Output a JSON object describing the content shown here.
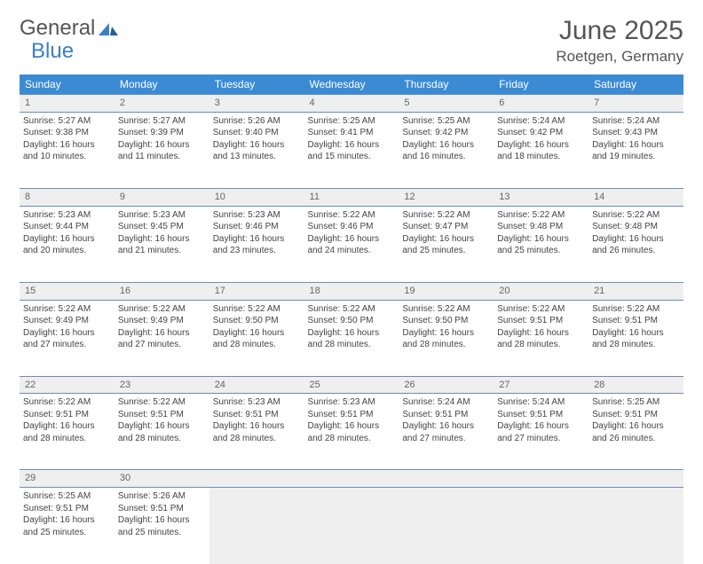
{
  "logo": {
    "part1": "General",
    "part2": "Blue"
  },
  "title": "June 2025",
  "location": "Roetgen, Germany",
  "colors": {
    "header_bg": "#3b8bd4",
    "row_divider": "#6a8fb5",
    "daynum_bg": "#efefef",
    "page_bg": "#ffffff",
    "text": "#444444",
    "logo_blue": "#3b7fc4"
  },
  "weekdays": [
    "Sunday",
    "Monday",
    "Tuesday",
    "Wednesday",
    "Thursday",
    "Friday",
    "Saturday"
  ],
  "weeks": [
    {
      "days": [
        {
          "n": "1",
          "sunrise": "5:27 AM",
          "sunset": "9:38 PM",
          "dl": "16 hours and 10 minutes."
        },
        {
          "n": "2",
          "sunrise": "5:27 AM",
          "sunset": "9:39 PM",
          "dl": "16 hours and 11 minutes."
        },
        {
          "n": "3",
          "sunrise": "5:26 AM",
          "sunset": "9:40 PM",
          "dl": "16 hours and 13 minutes."
        },
        {
          "n": "4",
          "sunrise": "5:25 AM",
          "sunset": "9:41 PM",
          "dl": "16 hours and 15 minutes."
        },
        {
          "n": "5",
          "sunrise": "5:25 AM",
          "sunset": "9:42 PM",
          "dl": "16 hours and 16 minutes."
        },
        {
          "n": "6",
          "sunrise": "5:24 AM",
          "sunset": "9:42 PM",
          "dl": "16 hours and 18 minutes."
        },
        {
          "n": "7",
          "sunrise": "5:24 AM",
          "sunset": "9:43 PM",
          "dl": "16 hours and 19 minutes."
        }
      ]
    },
    {
      "days": [
        {
          "n": "8",
          "sunrise": "5:23 AM",
          "sunset": "9:44 PM",
          "dl": "16 hours and 20 minutes."
        },
        {
          "n": "9",
          "sunrise": "5:23 AM",
          "sunset": "9:45 PM",
          "dl": "16 hours and 21 minutes."
        },
        {
          "n": "10",
          "sunrise": "5:23 AM",
          "sunset": "9:46 PM",
          "dl": "16 hours and 23 minutes."
        },
        {
          "n": "11",
          "sunrise": "5:22 AM",
          "sunset": "9:46 PM",
          "dl": "16 hours and 24 minutes."
        },
        {
          "n": "12",
          "sunrise": "5:22 AM",
          "sunset": "9:47 PM",
          "dl": "16 hours and 25 minutes."
        },
        {
          "n": "13",
          "sunrise": "5:22 AM",
          "sunset": "9:48 PM",
          "dl": "16 hours and 25 minutes."
        },
        {
          "n": "14",
          "sunrise": "5:22 AM",
          "sunset": "9:48 PM",
          "dl": "16 hours and 26 minutes."
        }
      ]
    },
    {
      "days": [
        {
          "n": "15",
          "sunrise": "5:22 AM",
          "sunset": "9:49 PM",
          "dl": "16 hours and 27 minutes."
        },
        {
          "n": "16",
          "sunrise": "5:22 AM",
          "sunset": "9:49 PM",
          "dl": "16 hours and 27 minutes."
        },
        {
          "n": "17",
          "sunrise": "5:22 AM",
          "sunset": "9:50 PM",
          "dl": "16 hours and 28 minutes."
        },
        {
          "n": "18",
          "sunrise": "5:22 AM",
          "sunset": "9:50 PM",
          "dl": "16 hours and 28 minutes."
        },
        {
          "n": "19",
          "sunrise": "5:22 AM",
          "sunset": "9:50 PM",
          "dl": "16 hours and 28 minutes."
        },
        {
          "n": "20",
          "sunrise": "5:22 AM",
          "sunset": "9:51 PM",
          "dl": "16 hours and 28 minutes."
        },
        {
          "n": "21",
          "sunrise": "5:22 AM",
          "sunset": "9:51 PM",
          "dl": "16 hours and 28 minutes."
        }
      ]
    },
    {
      "days": [
        {
          "n": "22",
          "sunrise": "5:22 AM",
          "sunset": "9:51 PM",
          "dl": "16 hours and 28 minutes."
        },
        {
          "n": "23",
          "sunrise": "5:22 AM",
          "sunset": "9:51 PM",
          "dl": "16 hours and 28 minutes."
        },
        {
          "n": "24",
          "sunrise": "5:23 AM",
          "sunset": "9:51 PM",
          "dl": "16 hours and 28 minutes."
        },
        {
          "n": "25",
          "sunrise": "5:23 AM",
          "sunset": "9:51 PM",
          "dl": "16 hours and 28 minutes."
        },
        {
          "n": "26",
          "sunrise": "5:24 AM",
          "sunset": "9:51 PM",
          "dl": "16 hours and 27 minutes."
        },
        {
          "n": "27",
          "sunrise": "5:24 AM",
          "sunset": "9:51 PM",
          "dl": "16 hours and 27 minutes."
        },
        {
          "n": "28",
          "sunrise": "5:25 AM",
          "sunset": "9:51 PM",
          "dl": "16 hours and 26 minutes."
        }
      ]
    },
    {
      "days": [
        {
          "n": "29",
          "sunrise": "5:25 AM",
          "sunset": "9:51 PM",
          "dl": "16 hours and 25 minutes."
        },
        {
          "n": "30",
          "sunrise": "5:26 AM",
          "sunset": "9:51 PM",
          "dl": "16 hours and 25 minutes."
        },
        null,
        null,
        null,
        null,
        null
      ]
    }
  ],
  "labels": {
    "sunrise": "Sunrise: ",
    "sunset": "Sunset: ",
    "daylight": "Daylight: "
  }
}
